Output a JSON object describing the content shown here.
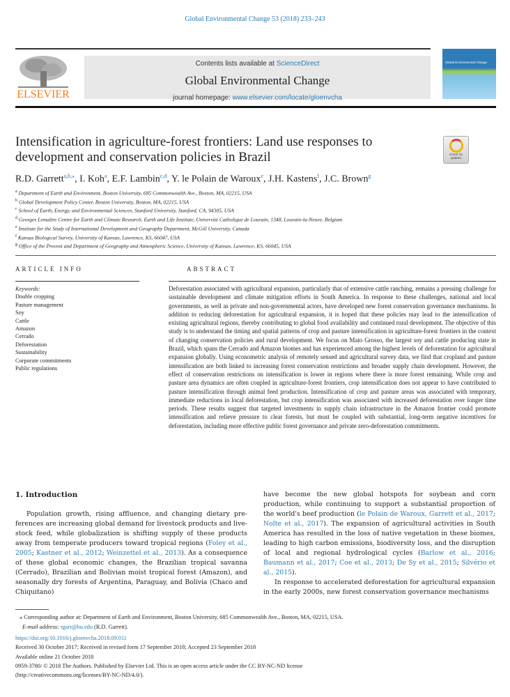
{
  "header": {
    "citation": "Global Environmental Change 53 (2018) 233–243",
    "contents_prefix": "Contents lists available at ",
    "contents_link": "ScienceDirect",
    "journal_title": "Global Environmental Change",
    "homepage_prefix": "journal homepage: ",
    "homepage_link": "www.elsevier.com/locate/gloenvcha",
    "publisher_logo": "ELSEVIER",
    "cover_title": "Global Environmental Change",
    "check_updates": "Check for updates"
  },
  "article": {
    "title": "Intensification in agriculture-forest frontiers: Land use responses to development and conservation policies in Brazil",
    "authors": [
      {
        "name": "R.D. Garrett",
        "sup": "a,b,⁎"
      },
      {
        "name": "I. Koh",
        "sup": "a"
      },
      {
        "name": "E.F. Lambin",
        "sup": "c,d"
      },
      {
        "name": "Y. le Polain de Waroux",
        "sup": "e"
      },
      {
        "name": "J.H. Kastens",
        "sup": "f"
      },
      {
        "name": "J.C. Brown",
        "sup": "g"
      }
    ],
    "affiliations": [
      {
        "key": "a",
        "text": "Department of Earth and Environment, Boston University, 685 Commonwealth Ave., Boston, MA, 02215, USA"
      },
      {
        "key": "b",
        "text": "Global Development Policy Center, Boston University, Boston, MA, 02215, USA"
      },
      {
        "key": "c",
        "text": "School of Earth, Energy, and Environmental Sciences, Stanford University, Stanford, CA, 94305, USA"
      },
      {
        "key": "d",
        "text": "Georges Lemaître Centre for Earth and Climate Research, Earth and Life Institute, Université Catholique de Louvain, 1348, Louvain-la-Neuve, Belgium"
      },
      {
        "key": "e",
        "text": "Institute for the Study of International Development and Geography Department, McGill University, Canada"
      },
      {
        "key": "f",
        "text": "Kansas Biological Survey, University of Kansas, Lawrence, KS, 66047, USA"
      },
      {
        "key": "g",
        "text": "Office of the Provost and Department of Geography and Atmospheric Science, University of Kansas, Lawrence, KS, 66045, USA"
      }
    ]
  },
  "article_info": {
    "heading": "ARTICLE INFO",
    "keywords_label": "Keywords:",
    "keywords": [
      "Double cropping",
      "Pasture management",
      "Soy",
      "Cattle",
      "Amazon",
      "Cerrado",
      "Deforestation",
      "Sustainability",
      "Corporate commitments",
      "Public regulations"
    ]
  },
  "abstract": {
    "heading": "ABSTRACT",
    "text": "Deforestation associated with agricultural expansion, particularly that of extensive cattle ranching, remains a pressing challenge for sustainable development and climate mitigation efforts in South America. In response to these challenges, national and local governments, as well as private and non-governmental actors, have de­veloped new forest conservation governance mechanisms. In addition to reducing deforestation for agricultural expansion, it is hoped that these policies may lead to the intensification of existing agricultural regions, thereby contributing to global food availability and continued rural development. The objective of this study is to un­derstand the timing and spatial patterns of crop and pasture intensification in agriculture-forest frontiers in the context of changing conservation policies and rural development. We focus on Mato Grosso, the largest soy and cattle producing state in Brazil, which spans the Cerrado and Amazon biomes and has experienced among the highest levels of deforestation for agricultural expansion globally. Using econometric analysis of remotely sensed and agricultural survey data, we find that cropland and pasture intensification are both linked to increasing forest conservation restrictions and broader supply chain development. However, the effect of conservation restrictions on intensification is lower in regions where there is more forest remaining. While crop and pasture area dynamics are often coupled in agriculture-forest frontiers, crop intensification does not appear to have contributed to pasture intensification through animal feed production. Intensification of crop and pasture areas was associated with temporary, immediate reductions in local deforestation, but crop intensification was as­sociated with increased deforestation over longer time periods. These results suggest that targeted investments in supply chain infrastructure in the Amazon frontier could promote intensification and relieve pressure to clear forests, but must be coupled with substantial, long-term negative incentives for deforestation, including more effective public forest governance and private zero-deforestation commitments."
  },
  "introduction": {
    "heading": "1.  Introduction",
    "left": [
      {
        "t": "Population growth, rising affluence, and changing dietary pre­ferences are increasing global demand for livestock products and live­stock feed, while globalization is shifting supply of these products away from temperate producers toward tropical regions ("
      },
      {
        "link": "Foley et al., 2005"
      },
      {
        "t": "; "
      },
      {
        "link": "Kastner et al., 2012"
      },
      {
        "t": "; "
      },
      {
        "link": "Weinzettel et al., 2013"
      },
      {
        "t": "). As a consequence of these global economic changes, the Brazilian tropical savanna (Cerrado), Brazilian and Bolivian moist tropical forest (Amazon), and seasonally dry forests of Argentina, Paraguay, and Bolivia (Chaco and Chiquitano)"
      }
    ],
    "right_p1": [
      {
        "t": "have become the new global hotspots for soybean and corn production, while continuing to support a substantial proportion of the world's beef production ("
      },
      {
        "link": "le Polain de Waroux, Garrett et al., 2017"
      },
      {
        "t": "; "
      },
      {
        "link": "Nolte et al., 2017"
      },
      {
        "t": "). The expansion of agricultural activities in South America has resulted in the loss of native vegetation in these biomes, leading to high carbon emissions, biodiversity loss, and the disruption of local and re­gional hydrological cycles ("
      },
      {
        "link": "Barlow et al., 2016"
      },
      {
        "t": "; "
      },
      {
        "link": "Baumann et al., 2017"
      },
      {
        "t": "; "
      },
      {
        "link": "Coe et al., 2013"
      },
      {
        "t": "; "
      },
      {
        "link": "De Sy et al., 2015"
      },
      {
        "t": "; "
      },
      {
        "link": "Silvério et al., 2015"
      },
      {
        "t": ")."
      }
    ],
    "right_p2": "In response to accelerated deforestation for agricultural expansion in the early 2000s, new forest conservation governance mechanisms"
  },
  "footnote": {
    "corresponding": "⁎ Corresponding author at: Department of Earth and Environment, Boston University, 685 Commonwealth Ave., Boston, MA, 02215, USA.",
    "email_label": "E-mail address:",
    "email": "rgarr@bu.edu",
    "email_suffix": " (R.D. Garrett)."
  },
  "pubinfo": {
    "doi": "https://doi.org/10.1016/j.gloenvcha.2018.09.011",
    "received": "Received 30 October 2017; Received in revised form 17 September 2018; Accepted 23 September 2018",
    "online": "Available online 21 October 2018",
    "license": "0959-3780/ © 2018 The Authors. Published by Elsevier Ltd. This is an open access article under the CC BY-NC-ND license",
    "license_url": "(http://creativecommons.org/licenses/BY-NC-ND/4.0/)."
  },
  "colors": {
    "link": "#2a7ab0",
    "elsevier_orange": "#f07d1a",
    "banner_bg": "#e8e8e8"
  }
}
